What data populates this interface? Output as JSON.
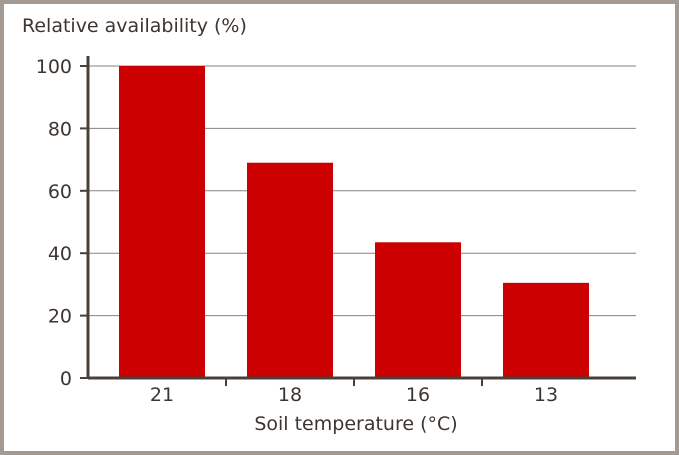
{
  "chart_data": {
    "type": "bar",
    "title": "",
    "ylabel": "Relative availability (%)",
    "xlabel": "Soil temperature (°C)",
    "categories": [
      "21",
      "18",
      "16",
      "13"
    ],
    "values": [
      100,
      69,
      43.5,
      30.5
    ],
    "ylim": [
      0,
      100
    ],
    "yticks": [
      0,
      20,
      40,
      60,
      80,
      100
    ],
    "grid": true,
    "bar_color": "#cc0000",
    "grid_color": "#8a807a",
    "axis_color": "#4a403a",
    "text_color": "#3d3530",
    "frame_color": "#a39a93"
  }
}
